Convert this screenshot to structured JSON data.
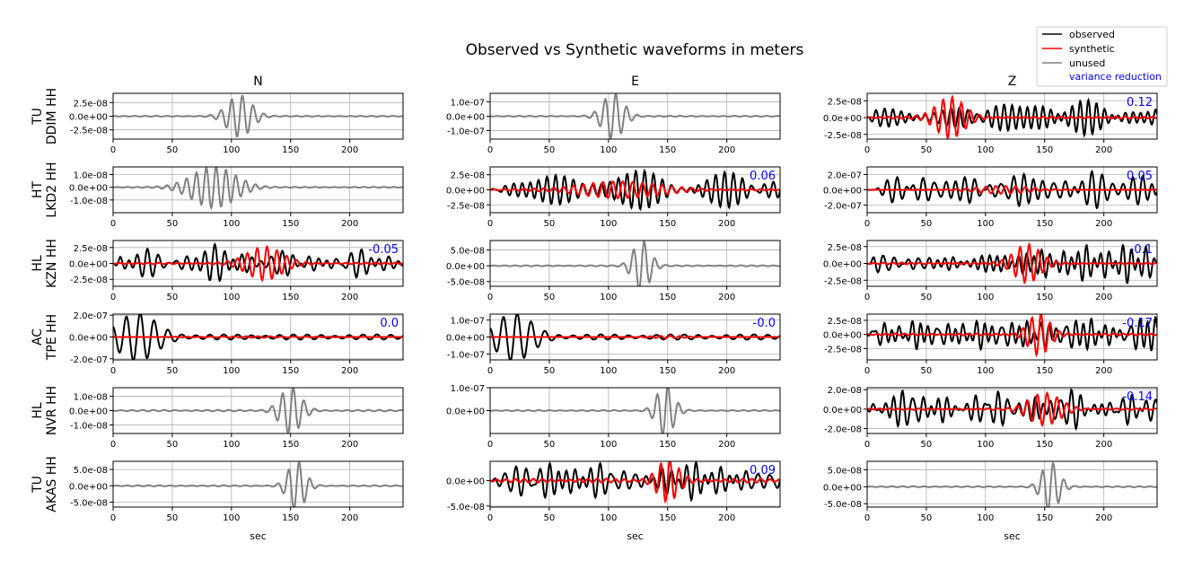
{
  "figure": {
    "title": "Observed vs Synthetic waveforms in meters",
    "columns": [
      "N",
      "E",
      "Z"
    ],
    "xlabel": "sec"
  },
  "legend": {
    "placement": "top-right",
    "entries": [
      {
        "label": "observed",
        "color": "#000000",
        "kind": "line"
      },
      {
        "label": "synthetic",
        "color": "#ff0000",
        "kind": "line"
      },
      {
        "label": "unused",
        "color": "#808080",
        "kind": "line"
      },
      {
        "label": "variance reduction",
        "color": "#0000ff",
        "kind": "text"
      }
    ]
  },
  "colors": {
    "observed": "#000000",
    "synthetic": "#ff0000",
    "unused": "#808080",
    "vr": "#0000ff",
    "grid": "#b0b0b0"
  },
  "chart_data": {
    "type": "line",
    "x_unit": "sec",
    "xlim": [
      0,
      245
    ],
    "xticks": [
      0,
      50,
      100,
      150,
      200
    ],
    "xticklabels": [
      "0",
      "50",
      "100",
      "150",
      "200"
    ],
    "grid": true,
    "stations": [
      {
        "label": "TU\nDDIM HH",
        "line1": "TU",
        "line2": "DDIM HH"
      },
      {
        "label": "HT\nLKD2 HH",
        "line1": "HT",
        "line2": "LKD2 HH"
      },
      {
        "label": "HL\nKZN HH",
        "line1": "HL",
        "line2": "KZN HH"
      },
      {
        "label": "AC\nTPE HH",
        "line1": "AC",
        "line2": "TPE HH"
      },
      {
        "label": "HL\nNVR HH",
        "line1": "HL",
        "line2": "NVR HH"
      },
      {
        "label": "TU\nAKAS HH",
        "line1": "TU",
        "line2": "AKAS HH"
      }
    ],
    "panels": [
      {
        "row": 0,
        "col": 0,
        "used": false,
        "vr": "",
        "ylim": [
          -4.2e-08,
          4.2e-08
        ],
        "yticks": [
          2.5e-08,
          0,
          -2.5e-08
        ],
        "yticklabels": [
          "2.5e-08",
          "0.0e+00",
          "-2.5e-08"
        ],
        "obs": {
          "center": 107,
          "width": 14,
          "amp": 3.8e-08,
          "freq": 0.11,
          "bg": 0.02
        }
      },
      {
        "row": 0,
        "col": 1,
        "used": false,
        "vr": "",
        "ylim": [
          -1.6e-07,
          1.6e-07
        ],
        "yticks": [
          1e-07,
          0,
          -1e-07
        ],
        "yticklabels": [
          "1.0e-07",
          "0.0e+00",
          "-1.0e-07"
        ],
        "obs": {
          "center": 104,
          "width": 12,
          "amp": 1.6e-07,
          "freq": 0.11,
          "bg": 0.02
        }
      },
      {
        "row": 0,
        "col": 2,
        "used": true,
        "vr": "0.12",
        "ylim": [
          -3.2e-08,
          3.6e-08
        ],
        "yticks": [
          2.5e-08,
          0,
          -2.5e-08
        ],
        "yticklabels": [
          "2.5e-08",
          "0.0e+00",
          "-2.5e-08"
        ],
        "obs": {
          "amp": 2.6e-08,
          "freq": 0.135,
          "seed": 1
        },
        "syn": {
          "center": 70,
          "width": 16,
          "amp": 3e-08,
          "freq": 0.13,
          "bg": 0.05
        }
      },
      {
        "row": 1,
        "col": 0,
        "used": false,
        "vr": "",
        "ylim": [
          -2e-08,
          1.6e-08
        ],
        "yticks": [
          1e-08,
          0,
          -1e-08
        ],
        "yticklabels": [
          "1.0e-08",
          "0.0e+00",
          "-1.0e-08"
        ],
        "obs": {
          "center": 85,
          "width": 25,
          "amp": 1.6e-08,
          "freq": 0.12,
          "bg": 0.02
        }
      },
      {
        "row": 1,
        "col": 1,
        "used": true,
        "vr": "0.06",
        "ylim": [
          -3.8e-08,
          3.8e-08
        ],
        "yticks": [
          2.5e-08,
          0,
          -2.5e-08
        ],
        "yticklabels": [
          "2.5e-08",
          "0.0e+00",
          "-2.5e-08"
        ],
        "obs": {
          "amp": 3.2e-08,
          "freq": 0.13,
          "seed": 2
        },
        "syn": {
          "center": 110,
          "width": 45,
          "amp": 1.3e-08,
          "freq": 0.12,
          "bg": 0.1
        }
      },
      {
        "row": 1,
        "col": 2,
        "used": true,
        "vr": "0.05",
        "ylim": [
          -3e-07,
          3e-07
        ],
        "yticks": [
          2e-07,
          0,
          -2e-07
        ],
        "yticklabels": [
          "2.0e-07",
          "0.0e+00",
          "-2.0e-07"
        ],
        "obs": {
          "amp": 2.4e-07,
          "freq": 0.11,
          "seed": 3
        },
        "syn": {
          "center": 115,
          "width": 30,
          "amp": 5e-08,
          "freq": 0.12,
          "bg": 0.05
        }
      },
      {
        "row": 2,
        "col": 0,
        "used": true,
        "vr": "-0.05",
        "ylim": [
          -3.6e-08,
          3.6e-08
        ],
        "yticks": [
          2.5e-08,
          0,
          -2.5e-08
        ],
        "yticklabels": [
          "2.5e-08",
          "0.0e+00",
          "-2.5e-08"
        ],
        "obs": {
          "amp": 3e-08,
          "freq": 0.12,
          "seed": 4
        },
        "syn": {
          "center": 128,
          "width": 20,
          "amp": 2.6e-08,
          "freq": 0.12,
          "bg": 0.05
        }
      },
      {
        "row": 2,
        "col": 1,
        "used": false,
        "vr": "",
        "ylim": [
          -6.5e-08,
          8e-08
        ],
        "yticks": [
          5e-08,
          0,
          -5e-08
        ],
        "yticklabels": [
          "5.0e-08",
          "0.0e+00",
          "-5.0e-08"
        ],
        "obs": {
          "center": 128,
          "width": 10,
          "amp": 8e-08,
          "freq": 0.11,
          "bg": 0.02
        }
      },
      {
        "row": 2,
        "col": 2,
        "used": true,
        "vr": "-0.1",
        "ylim": [
          -3.4e-08,
          3.4e-08
        ],
        "yticks": [
          2.5e-08,
          0,
          -2.5e-08
        ],
        "yticklabels": [
          "2.5e-08",
          "0.0e+00",
          "-2.5e-08"
        ],
        "obs": {
          "amp": 2.9e-08,
          "freq": 0.13,
          "seed": 5
        },
        "syn": {
          "center": 135,
          "width": 15,
          "amp": 2.8e-08,
          "freq": 0.13,
          "bg": 0.05
        }
      },
      {
        "row": 3,
        "col": 0,
        "used": true,
        "vr": "0.0",
        "ylim": [
          -2.1e-07,
          2.1e-07
        ],
        "yticks": [
          2e-07,
          0,
          -2e-07
        ],
        "yticklabels": [
          "2.0e-07",
          "0.0e+00",
          "-2.0e-07"
        ],
        "obs": {
          "center": 20,
          "width": 22,
          "amp": 2e-07,
          "freq": 0.085,
          "bg": 0.12
        },
        "syn": {
          "center": 120,
          "width": 60,
          "amp": 6e-09,
          "freq": 0.1,
          "bg": 0.0
        }
      },
      {
        "row": 3,
        "col": 1,
        "used": true,
        "vr": "-0.0",
        "ylim": [
          -1.35e-07,
          1.35e-07
        ],
        "yticks": [
          1e-07,
          0,
          -1e-07
        ],
        "yticklabels": [
          "1.0e-07",
          "0.0e+00",
          "-1.0e-07"
        ],
        "obs": {
          "center": 20,
          "width": 20,
          "amp": 1.3e-07,
          "freq": 0.085,
          "bg": 0.12
        },
        "syn": {
          "center": 150,
          "width": 20,
          "amp": 8e-09,
          "freq": 0.12,
          "bg": 0.0
        }
      },
      {
        "row": 3,
        "col": 2,
        "used": true,
        "vr": "-0.17",
        "ylim": [
          -4.5e-08,
          3.6e-08
        ],
        "yticks": [
          2.5e-08,
          0,
          -2.5e-08
        ],
        "yticklabels": [
          "2.5e-08",
          "0.0e+00",
          "-2.5e-08"
        ],
        "obs": {
          "amp": 3e-08,
          "freq": 0.13,
          "seed": 6
        },
        "syn": {
          "center": 145,
          "width": 12,
          "amp": 3.6e-08,
          "freq": 0.13,
          "bg": 0.05
        }
      },
      {
        "row": 4,
        "col": 0,
        "used": false,
        "vr": "",
        "ylim": [
          -1.6e-08,
          1.6e-08
        ],
        "yticks": [
          1e-08,
          0,
          -1e-08
        ],
        "yticklabels": [
          "1.0e-08",
          "0.0e+00",
          "-1.0e-08"
        ],
        "obs": {
          "center": 150,
          "width": 12,
          "amp": 1.6e-08,
          "freq": 0.11,
          "bg": 0.03
        }
      },
      {
        "row": 4,
        "col": 1,
        "used": false,
        "vr": "",
        "ylim": [
          -1e-07,
          1e-07
        ],
        "yticks": [
          1e-07,
          0
        ],
        "yticklabels": [
          "1.0e-07",
          "0.0e+00"
        ],
        "obs": {
          "center": 148,
          "width": 10,
          "amp": 1.1e-07,
          "freq": 0.11,
          "bg": 0.02
        }
      },
      {
        "row": 4,
        "col": 2,
        "used": true,
        "vr": "-0.14",
        "ylim": [
          -2.5e-08,
          2.2e-08
        ],
        "yticks": [
          2e-08,
          0,
          -2e-08
        ],
        "yticklabels": [
          "2.0e-08",
          "0.0e+00",
          "-2.0e-08"
        ],
        "obs": {
          "amp": 2e-08,
          "freq": 0.13,
          "seed": 7
        },
        "syn": {
          "center": 150,
          "width": 18,
          "amp": 1.6e-08,
          "freq": 0.12,
          "bg": 0.05
        }
      },
      {
        "row": 5,
        "col": 0,
        "used": false,
        "vr": "",
        "ylim": [
          -6.5e-08,
          7.5e-08
        ],
        "yticks": [
          5e-08,
          0,
          -5e-08
        ],
        "yticklabels": [
          "5.0e-08",
          "0.0e+00",
          "-5.0e-08"
        ],
        "obs": {
          "center": 155,
          "width": 10,
          "amp": 7.5e-08,
          "freq": 0.11,
          "bg": 0.02
        }
      },
      {
        "row": 5,
        "col": 1,
        "used": true,
        "vr": "0.09",
        "ylim": [
          -5.2e-08,
          3.8e-08
        ],
        "yticks": [
          0,
          -5e-08
        ],
        "yticklabels": [
          "0.0e+00",
          "-5.0e-08"
        ],
        "obs": {
          "amp": 3.8e-08,
          "freq": 0.12,
          "seed": 8
        },
        "syn": {
          "center": 150,
          "width": 12,
          "amp": 3.8e-08,
          "freq": 0.13,
          "bg": 0.1
        }
      },
      {
        "row": 5,
        "col": 2,
        "used": false,
        "vr": "",
        "ylim": [
          -6e-08,
          7.5e-08
        ],
        "yticks": [
          5e-08,
          0,
          -5e-08
        ],
        "yticklabels": [
          "5.0e-08",
          "0.0e+00",
          "-5.0e-08"
        ],
        "obs": {
          "center": 155,
          "width": 10,
          "amp": 7.2e-08,
          "freq": 0.11,
          "bg": 0.02
        }
      }
    ]
  }
}
